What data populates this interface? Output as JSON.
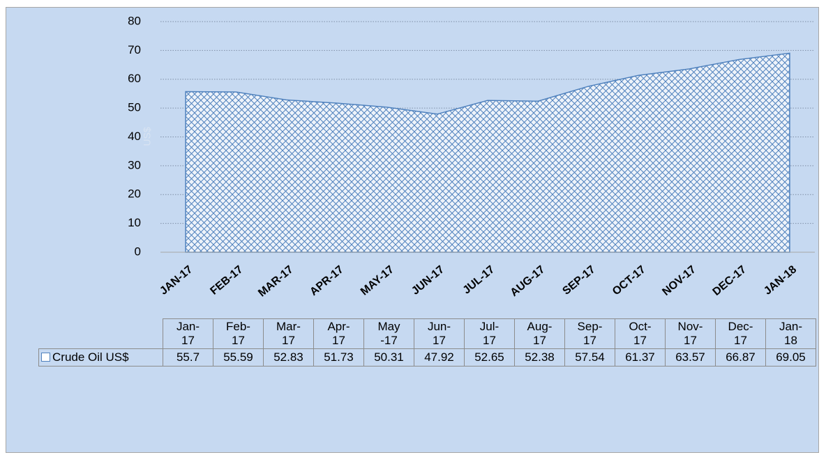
{
  "chart_data": {
    "type": "area",
    "y_label": "US$",
    "categories": [
      "JAN-17",
      "FEB-17",
      "MAR-17",
      "APR-17",
      "MAY-17",
      "JUN-17",
      "JUL-17",
      "AUG-17",
      "SEP-17",
      "OCT-17",
      "NOV-17",
      "DEC-17",
      "JAN-18"
    ],
    "table_columns": [
      "Jan-17",
      "Feb-17",
      "Mar-17",
      "Apr-17",
      "May-17",
      "Jun-17",
      "Jul-17",
      "Aug-17",
      "Sep-17",
      "Oct-17",
      "Nov-17",
      "Dec-17",
      "Jan-18"
    ],
    "series": [
      {
        "name": "Crude Oil US$",
        "color": "#4f81bd",
        "values": [
          55.7,
          55.59,
          52.83,
          51.73,
          50.31,
          47.92,
          52.65,
          52.38,
          57.54,
          61.37,
          63.57,
          66.87,
          69.05
        ]
      }
    ],
    "ylim": [
      0,
      80
    ],
    "yticks": [
      0,
      10,
      20,
      30,
      40,
      50,
      60,
      70,
      80
    ],
    "grid": true
  }
}
